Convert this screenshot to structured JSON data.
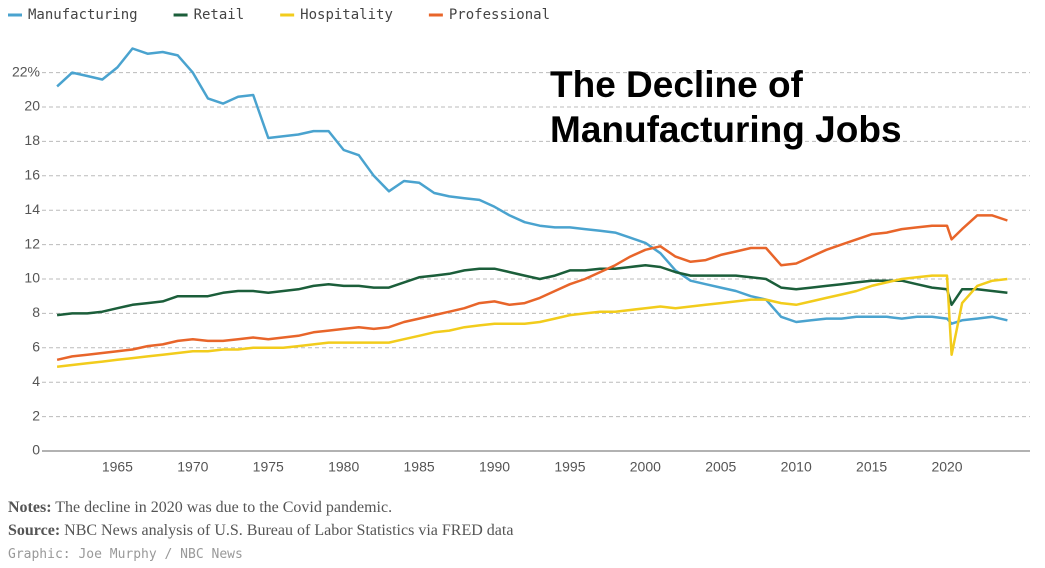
{
  "chart_data": {
    "type": "line",
    "title": "The Decline of Manufacturing Jobs",
    "x": [
      1961,
      1962,
      1963,
      1964,
      1965,
      1966,
      1967,
      1968,
      1969,
      1970,
      1971,
      1972,
      1973,
      1974,
      1975,
      1976,
      1977,
      1978,
      1979,
      1980,
      1981,
      1982,
      1983,
      1984,
      1985,
      1986,
      1987,
      1988,
      1989,
      1990,
      1991,
      1992,
      1993,
      1994,
      1995,
      1996,
      1997,
      1998,
      1999,
      2000,
      2001,
      2002,
      2003,
      2004,
      2005,
      2006,
      2007,
      2008,
      2009,
      2010,
      2011,
      2012,
      2013,
      2014,
      2015,
      2016,
      2017,
      2018,
      2019,
      2020,
      2020.3,
      2021,
      2022,
      2023,
      2024
    ],
    "series": [
      {
        "name": "Manufacturing",
        "color": "#4aa3cf",
        "values": [
          21.2,
          22.0,
          21.8,
          21.6,
          22.3,
          23.4,
          23.1,
          23.2,
          23.0,
          22.0,
          20.5,
          20.2,
          20.6,
          20.7,
          18.2,
          18.3,
          18.4,
          18.6,
          18.6,
          17.5,
          17.2,
          16.0,
          15.1,
          15.7,
          15.6,
          15.0,
          14.8,
          14.7,
          14.6,
          14.2,
          13.7,
          13.3,
          13.1,
          13.0,
          13.0,
          12.9,
          12.8,
          12.7,
          12.4,
          12.1,
          11.5,
          10.5,
          9.9,
          9.7,
          9.5,
          9.3,
          9.0,
          8.8,
          7.8,
          7.5,
          7.6,
          7.7,
          7.7,
          7.8,
          7.8,
          7.8,
          7.7,
          7.8,
          7.8,
          7.7,
          7.4,
          7.6,
          7.7,
          7.8,
          7.6
        ]
      },
      {
        "name": "Retail",
        "color": "#1b5e3a",
        "values": [
          7.9,
          8.0,
          8.0,
          8.1,
          8.3,
          8.5,
          8.6,
          8.7,
          9.0,
          9.0,
          9.0,
          9.2,
          9.3,
          9.3,
          9.2,
          9.3,
          9.4,
          9.6,
          9.7,
          9.6,
          9.6,
          9.5,
          9.5,
          9.8,
          10.1,
          10.2,
          10.3,
          10.5,
          10.6,
          10.6,
          10.4,
          10.2,
          10.0,
          10.2,
          10.5,
          10.5,
          10.6,
          10.6,
          10.7,
          10.8,
          10.7,
          10.4,
          10.2,
          10.2,
          10.2,
          10.2,
          10.1,
          10.0,
          9.5,
          9.4,
          9.5,
          9.6,
          9.7,
          9.8,
          9.9,
          9.9,
          9.9,
          9.7,
          9.5,
          9.4,
          8.5,
          9.4,
          9.4,
          9.3,
          9.2
        ]
      },
      {
        "name": "Hospitality",
        "color": "#f2cc1c",
        "values": [
          4.9,
          5.0,
          5.1,
          5.2,
          5.3,
          5.4,
          5.5,
          5.6,
          5.7,
          5.8,
          5.8,
          5.9,
          5.9,
          6.0,
          6.0,
          6.0,
          6.1,
          6.2,
          6.3,
          6.3,
          6.3,
          6.3,
          6.3,
          6.5,
          6.7,
          6.9,
          7.0,
          7.2,
          7.3,
          7.4,
          7.4,
          7.4,
          7.5,
          7.7,
          7.9,
          8.0,
          8.1,
          8.1,
          8.2,
          8.3,
          8.4,
          8.3,
          8.4,
          8.5,
          8.6,
          8.7,
          8.8,
          8.8,
          8.6,
          8.5,
          8.7,
          8.9,
          9.1,
          9.3,
          9.6,
          9.8,
          10.0,
          10.1,
          10.2,
          10.2,
          5.6,
          8.6,
          9.6,
          9.9,
          10.0
        ]
      },
      {
        "name": "Professional",
        "color": "#e8652a",
        "values": [
          5.3,
          5.5,
          5.6,
          5.7,
          5.8,
          5.9,
          6.1,
          6.2,
          6.4,
          6.5,
          6.4,
          6.4,
          6.5,
          6.6,
          6.5,
          6.6,
          6.7,
          6.9,
          7.0,
          7.1,
          7.2,
          7.1,
          7.2,
          7.5,
          7.7,
          7.9,
          8.1,
          8.3,
          8.6,
          8.7,
          8.5,
          8.6,
          8.9,
          9.3,
          9.7,
          10.0,
          10.4,
          10.8,
          11.3,
          11.7,
          11.9,
          11.3,
          11.0,
          11.1,
          11.4,
          11.6,
          11.8,
          11.8,
          10.8,
          10.9,
          11.3,
          11.7,
          12.0,
          12.3,
          12.6,
          12.7,
          12.9,
          13.0,
          13.1,
          13.1,
          12.3,
          12.9,
          13.7,
          13.7,
          13.4
        ]
      }
    ],
    "xlim": [
      1960,
      2025.5
    ],
    "xticks": [
      1965,
      1970,
      1975,
      1980,
      1985,
      1990,
      1995,
      2000,
      2005,
      2010,
      2015,
      2020
    ],
    "ylim": [
      0,
      22.5
    ],
    "yticks": [
      0,
      2,
      4,
      6,
      8,
      10,
      12,
      14,
      16,
      18,
      20,
      {
        "value": 22,
        "label": "22%"
      }
    ],
    "grid": true,
    "notes": {
      "label": "Notes:",
      "text": "The decline in 2020 was due to the Covid pandemic."
    },
    "source": {
      "label": "Source:",
      "text": "NBC News analysis of U.S. Bureau of Labor Statistics via FRED data"
    },
    "credit": "Graphic: Joe Murphy / NBC News"
  }
}
